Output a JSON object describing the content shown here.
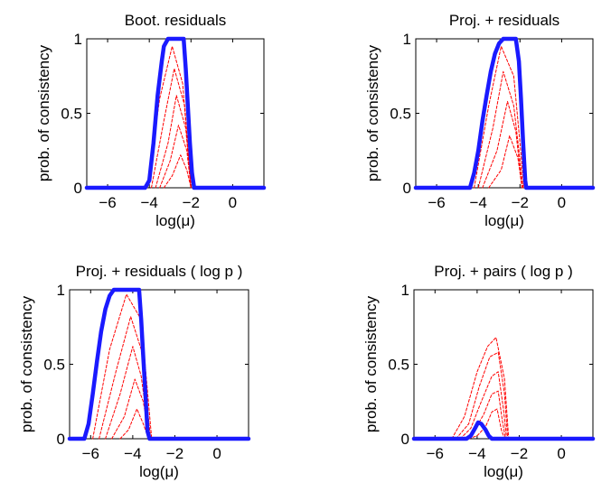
{
  "chart_data": [
    {
      "type": "line",
      "title": "Boot. residuals",
      "xlabel": "log(μ)",
      "ylabel": "prob. of consistency",
      "xlim": [
        -7,
        1.5
      ],
      "ylim": [
        0,
        1
      ],
      "xticks": [
        -6,
        -4,
        -2,
        0
      ],
      "xtick_labels": [
        "−6",
        "−4",
        "−2",
        "0"
      ],
      "yticks": [
        0,
        0.5,
        1
      ],
      "ytick_labels": [
        "0",
        "0.5",
        "1"
      ],
      "grid": false,
      "series": [
        {
          "color": "#1a1aff",
          "style": "solid-thick",
          "x": [
            -7,
            -4.2,
            -4.0,
            -3.8,
            -3.6,
            -3.4,
            -3.3,
            -3.1,
            -2.9,
            -2.5,
            -2.35,
            -2.25,
            -2.15,
            -2.05,
            -1.95,
            -1.85,
            1.5
          ],
          "y": [
            0,
            0,
            0.05,
            0.3,
            0.62,
            0.85,
            0.95,
            1.0,
            1.0,
            1.0,
            1.0,
            0.8,
            0.55,
            0.3,
            0.1,
            0,
            0
          ]
        },
        {
          "color": "#ff0000",
          "style": "dashed-thin",
          "x": [
            -4.1,
            -3.5,
            -2.9,
            -2.4,
            -2.0
          ],
          "y": [
            0,
            0.6,
            0.95,
            0.7,
            0
          ]
        },
        {
          "color": "#ff0000",
          "style": "dashed-thin",
          "x": [
            -3.9,
            -3.3,
            -2.8,
            -2.3,
            -2.0
          ],
          "y": [
            0,
            0.45,
            0.8,
            0.55,
            0
          ]
        },
        {
          "color": "#ff0000",
          "style": "dashed-thin",
          "x": [
            -3.7,
            -3.1,
            -2.7,
            -2.25,
            -2.0
          ],
          "y": [
            0,
            0.3,
            0.62,
            0.4,
            0
          ]
        },
        {
          "color": "#ff0000",
          "style": "dashed-thin",
          "x": [
            -3.5,
            -3.0,
            -2.6,
            -2.2,
            -2.0
          ],
          "y": [
            0,
            0.18,
            0.42,
            0.25,
            0
          ]
        },
        {
          "color": "#ff0000",
          "style": "dashed-thin",
          "x": [
            -3.3,
            -2.9,
            -2.5,
            -2.2,
            -2.0
          ],
          "y": [
            0,
            0.08,
            0.22,
            0.12,
            0
          ]
        }
      ]
    },
    {
      "type": "line",
      "title": "Proj. + residuals",
      "xlabel": "log(μ)",
      "ylabel": "prob. of consistency",
      "xlim": [
        -7,
        1.5
      ],
      "ylim": [
        0,
        1
      ],
      "xticks": [
        -6,
        -4,
        -2,
        0
      ],
      "xtick_labels": [
        "−6",
        "−4",
        "−2",
        "0"
      ],
      "yticks": [
        0,
        0.5,
        1
      ],
      "ytick_labels": [
        "0",
        "0.5",
        "1"
      ],
      "grid": false,
      "series": [
        {
          "color": "#1a1aff",
          "style": "solid-thick",
          "x": [
            -7,
            -4.4,
            -4.2,
            -4.0,
            -3.8,
            -3.6,
            -3.4,
            -3.2,
            -3.0,
            -2.8,
            -2.4,
            -2.2,
            -2.05,
            -1.95,
            -1.85,
            -1.75,
            -1.7,
            1.5
          ],
          "y": [
            0,
            0,
            0.1,
            0.25,
            0.45,
            0.62,
            0.78,
            0.9,
            0.97,
            1.0,
            1.0,
            1.0,
            0.85,
            0.6,
            0.3,
            0.05,
            0,
            0
          ]
        },
        {
          "color": "#ff0000",
          "style": "dashed-thin",
          "x": [
            -4.2,
            -3.5,
            -2.9,
            -2.3,
            -1.8
          ],
          "y": [
            0,
            0.55,
            0.95,
            0.75,
            0
          ]
        },
        {
          "color": "#ff0000",
          "style": "dashed-thin",
          "x": [
            -4.0,
            -3.3,
            -2.8,
            -2.3,
            -1.85
          ],
          "y": [
            0,
            0.4,
            0.78,
            0.55,
            0
          ]
        },
        {
          "color": "#ff0000",
          "style": "dashed-thin",
          "x": [
            -3.8,
            -3.1,
            -2.6,
            -2.2,
            -1.9
          ],
          "y": [
            0,
            0.25,
            0.58,
            0.38,
            0
          ]
        },
        {
          "color": "#ff0000",
          "style": "dashed-thin",
          "x": [
            -3.5,
            -2.9,
            -2.5,
            -2.1,
            -1.9
          ],
          "y": [
            0,
            0.12,
            0.35,
            0.2,
            0
          ]
        }
      ]
    },
    {
      "type": "line",
      "title": "Proj. + residuals ( log p )",
      "xlabel": "log(μ)",
      "ylabel": "prob. of consistency",
      "xlim": [
        -7,
        1.5
      ],
      "ylim": [
        0,
        1
      ],
      "xticks": [
        -6,
        -4,
        -2,
        0
      ],
      "xtick_labels": [
        "−6",
        "−4",
        "−2",
        "0"
      ],
      "yticks": [
        0,
        0.5,
        1
      ],
      "ytick_labels": [
        "0",
        "0.5",
        "1"
      ],
      "grid": false,
      "series": [
        {
          "color": "#1a1aff",
          "style": "solid-thick",
          "x": [
            -7,
            -6.3,
            -6.1,
            -5.9,
            -5.7,
            -5.5,
            -5.3,
            -5.1,
            -4.9,
            -4.7,
            -4.5,
            -4.0,
            -3.7,
            -3.6,
            -3.5,
            -3.4,
            -3.3,
            -3.2,
            1.5
          ],
          "y": [
            0,
            0,
            0.1,
            0.3,
            0.52,
            0.72,
            0.87,
            0.96,
            1.0,
            1.0,
            1.0,
            1.0,
            1.0,
            0.8,
            0.55,
            0.3,
            0.05,
            0,
            0
          ]
        },
        {
          "color": "#ff0000",
          "style": "dashed-thin",
          "x": [
            -5.9,
            -5.1,
            -4.3,
            -3.6,
            -3.1
          ],
          "y": [
            0,
            0.6,
            0.97,
            0.8,
            0
          ]
        },
        {
          "color": "#ff0000",
          "style": "dashed-thin",
          "x": [
            -5.6,
            -4.8,
            -4.1,
            -3.6,
            -3.15
          ],
          "y": [
            0,
            0.45,
            0.82,
            0.6,
            0
          ]
        },
        {
          "color": "#ff0000",
          "style": "dashed-thin",
          "x": [
            -5.3,
            -4.6,
            -4.0,
            -3.6,
            -3.2
          ],
          "y": [
            0,
            0.3,
            0.62,
            0.42,
            0
          ]
        },
        {
          "color": "#ff0000",
          "style": "dashed-thin",
          "x": [
            -5.0,
            -4.4,
            -3.9,
            -3.5,
            -3.2
          ],
          "y": [
            0,
            0.15,
            0.4,
            0.25,
            0
          ]
        },
        {
          "color": "#ff0000",
          "style": "dashed-thin",
          "x": [
            -4.6,
            -4.2,
            -3.8,
            -3.5,
            -3.25
          ],
          "y": [
            0,
            0.06,
            0.2,
            0.1,
            0
          ]
        }
      ]
    },
    {
      "type": "line",
      "title": "Proj. + pairs ( log p )",
      "xlabel": "log(μ)",
      "ylabel": "prob. of consistency",
      "xlim": [
        -7,
        1.5
      ],
      "ylim": [
        0,
        1
      ],
      "xticks": [
        -6,
        -4,
        -2,
        0
      ],
      "xtick_labels": [
        "−6",
        "−4",
        "−2",
        "0"
      ],
      "yticks": [
        0,
        0.5,
        1
      ],
      "ytick_labels": [
        "0",
        "0.5",
        "1"
      ],
      "grid": false,
      "series": [
        {
          "color": "#1a1aff",
          "style": "solid-thick",
          "x": [
            -7,
            -4.5,
            -4.3,
            -4.1,
            -3.95,
            -3.8,
            -3.6,
            -3.45,
            -3.3,
            1.5
          ],
          "y": [
            0,
            0,
            0.02,
            0.07,
            0.11,
            0.1,
            0.06,
            0.02,
            0,
            0
          ]
        },
        {
          "color": "#ff0000",
          "style": "dashed-thin",
          "x": [
            -5.2,
            -4.6,
            -4.0,
            -3.5,
            -3.1,
            -2.7,
            -2.5
          ],
          "y": [
            0,
            0.15,
            0.45,
            0.62,
            0.68,
            0.4,
            0
          ]
        },
        {
          "color": "#ff0000",
          "style": "dashed-thin",
          "x": [
            -5.0,
            -4.4,
            -3.9,
            -3.4,
            -3.0,
            -2.7,
            -2.55
          ],
          "y": [
            0,
            0.1,
            0.35,
            0.55,
            0.58,
            0.3,
            0
          ]
        },
        {
          "color": "#ff0000",
          "style": "dashed-thin",
          "x": [
            -4.8,
            -4.3,
            -3.8,
            -3.3,
            -3.0,
            -2.75,
            -2.6
          ],
          "y": [
            0,
            0.07,
            0.25,
            0.42,
            0.45,
            0.2,
            0
          ]
        },
        {
          "color": "#ff0000",
          "style": "dashed-thin",
          "x": [
            -4.6,
            -4.2,
            -3.7,
            -3.3,
            -3.0,
            -2.8,
            -2.65
          ],
          "y": [
            0,
            0.04,
            0.16,
            0.3,
            0.32,
            0.12,
            0
          ]
        },
        {
          "color": "#ff0000",
          "style": "dashed-thin",
          "x": [
            -4.4,
            -4.0,
            -3.6,
            -3.3,
            -3.05,
            -2.85,
            -2.7
          ],
          "y": [
            0,
            0.02,
            0.08,
            0.18,
            0.2,
            0.06,
            0
          ]
        }
      ]
    }
  ]
}
